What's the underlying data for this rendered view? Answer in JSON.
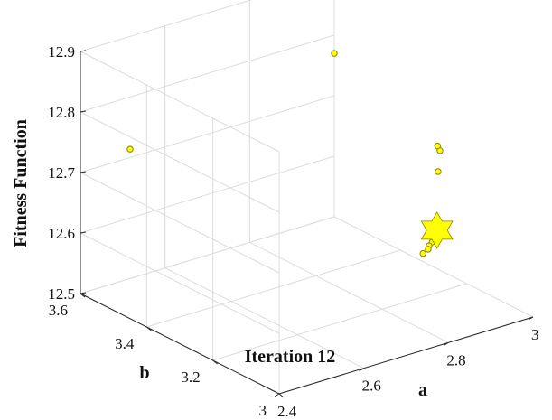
{
  "chart_data": {
    "type": "scatter",
    "view": "3d",
    "xlabel": "a",
    "ylabel": "b",
    "zlabel": "Fitness Function",
    "xlim": [
      2.4,
      3.0
    ],
    "ylim": [
      3.0,
      3.6
    ],
    "zlim": [
      12.5,
      12.9
    ],
    "x_ticks": [
      "2.4",
      "2.6",
      "2.8",
      "3"
    ],
    "y_ticks": [
      "3",
      "3.2",
      "3.4",
      "3.6"
    ],
    "z_ticks": [
      "12.5",
      "12.6",
      "12.7",
      "12.8",
      "12.9"
    ],
    "grid": true,
    "annotation": "Iteration 12",
    "marker_color": "#ffff00",
    "marker_edge_color": "#8a8000",
    "points": [
      {
        "a": 2.4,
        "b": 3.45,
        "z": 12.78
      },
      {
        "a": 3.0,
        "b": 3.6,
        "z": 12.77
      },
      {
        "a": 2.96,
        "b": 3.23,
        "z": 12.72
      },
      {
        "a": 2.97,
        "b": 3.25,
        "z": 12.72
      },
      {
        "a": 2.94,
        "b": 3.21,
        "z": 12.695
      },
      {
        "a": 2.8,
        "b": 3.05,
        "z": 12.67
      },
      {
        "a": 2.8,
        "b": 3.04,
        "z": 12.665
      },
      {
        "a": 2.79,
        "b": 3.03,
        "z": 12.663
      },
      {
        "a": 2.785,
        "b": 3.03,
        "z": 12.661
      },
      {
        "a": 2.77,
        "b": 3.02,
        "z": 12.661
      },
      {
        "a": 2.76,
        "b": 3.01,
        "z": 12.66
      },
      {
        "a": 2.74,
        "b": 3.0,
        "z": 12.66
      }
    ],
    "best": {
      "a": 2.82,
      "b": 3.06,
      "z": 12.665
    }
  }
}
